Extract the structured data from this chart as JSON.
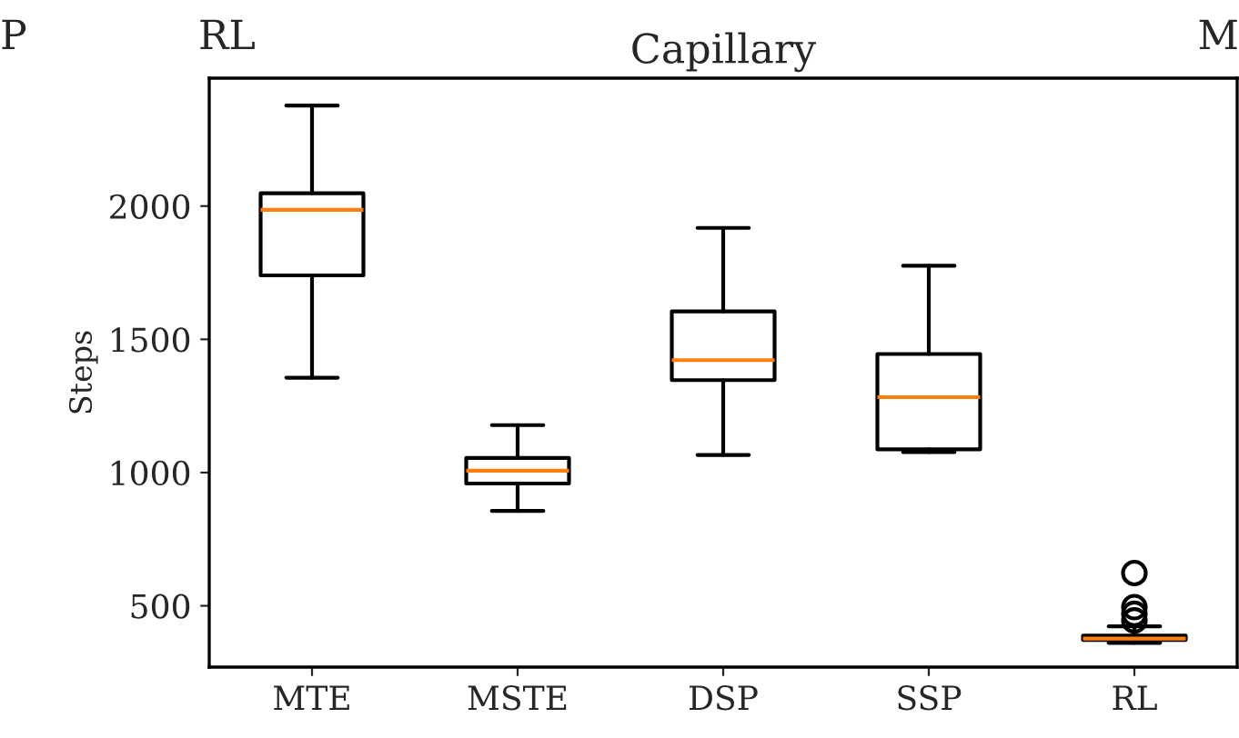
{
  "chart_data": {
    "type": "box",
    "title": "Capillary",
    "ylabel": "Steps",
    "categories": [
      "MTE",
      "MSTE",
      "DSP",
      "SSP",
      "RL"
    ],
    "boxes": [
      {
        "low": 1356,
        "q1": 1740,
        "median": 1986,
        "q3": 2048,
        "high": 2377
      },
      {
        "low": 856,
        "q1": 959,
        "median": 1007,
        "q3": 1055,
        "high": 1178
      },
      {
        "low": 1066,
        "q1": 1347,
        "median": 1422,
        "q3": 1605,
        "high": 1918
      },
      {
        "low": 1077,
        "q1": 1087,
        "median": 1283,
        "q3": 1445,
        "high": 1776
      },
      {
        "low": 361,
        "q1": 372,
        "median": 377,
        "q3": 388,
        "high": 423,
        "outliers": [
          623,
          495,
          470,
          445
        ]
      }
    ],
    "ylim": [
      270,
      2480
    ],
    "yticks": [
      500,
      1000,
      1500,
      2000
    ],
    "annotations": [
      "P",
      "RL",
      "M"
    ]
  }
}
